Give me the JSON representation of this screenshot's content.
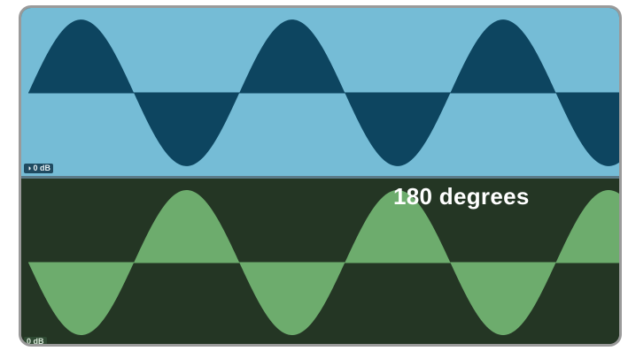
{
  "tracks": [
    {
      "gain_label": "0 dB",
      "phase_degrees": 0,
      "cycles_visible": 2.8,
      "background": "#75bcd6",
      "wave_color": "#0d4560",
      "icon": "speaker-icon"
    },
    {
      "gain_label": "0 dB",
      "phase_degrees": 180,
      "cycles_visible": 2.8,
      "background": "#243624",
      "wave_color": "#6dac6d",
      "icon": "speaker-icon"
    }
  ],
  "caption": "180 degrees"
}
